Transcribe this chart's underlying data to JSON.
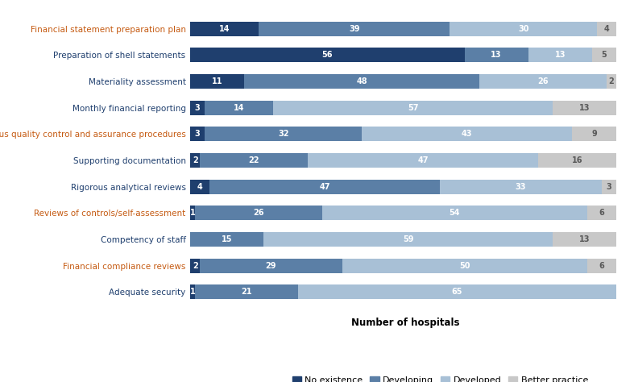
{
  "categories": [
    "Financial statement preparation plan",
    "Preparation of shell statements",
    "Materiality assessment",
    "Monthly financial reporting",
    "Rigorous quality control and assurance procedures",
    "Supporting documentation",
    "Rigorous analytical reviews",
    "Reviews of controls/self-assessment",
    "Competency of staff",
    "Financial compliance reviews",
    "Adequate security"
  ],
  "no_existence": [
    14,
    56,
    11,
    3,
    3,
    2,
    4,
    1,
    0,
    2,
    1
  ],
  "developing": [
    39,
    13,
    48,
    14,
    32,
    22,
    47,
    26,
    15,
    29,
    21
  ],
  "developed": [
    30,
    13,
    26,
    57,
    43,
    47,
    33,
    54,
    59,
    50,
    65
  ],
  "better_practice": [
    4,
    5,
    2,
    13,
    9,
    16,
    3,
    6,
    13,
    6,
    0
  ],
  "colors": {
    "no_existence": "#1f3f6e",
    "developing": "#5b7fa6",
    "developed": "#a8c0d6",
    "better_practice": "#c8c8c8"
  },
  "xlabel": "Number of hospitals",
  "legend_labels": [
    "No existence",
    "Developing",
    "Developed",
    "Better practice"
  ],
  "orange_cats": [
    "Financial statement preparation plan",
    "Rigorous quality control and assurance procedures",
    "Reviews of controls/self-assessment",
    "Financial compliance reviews"
  ],
  "label_color_dark": "#595959",
  "label_color_orange": "#c55a11",
  "label_color_darkblue": "#1f3f6e",
  "bar_height": 0.55,
  "figsize": [
    7.87,
    4.74
  ],
  "dpi": 100
}
